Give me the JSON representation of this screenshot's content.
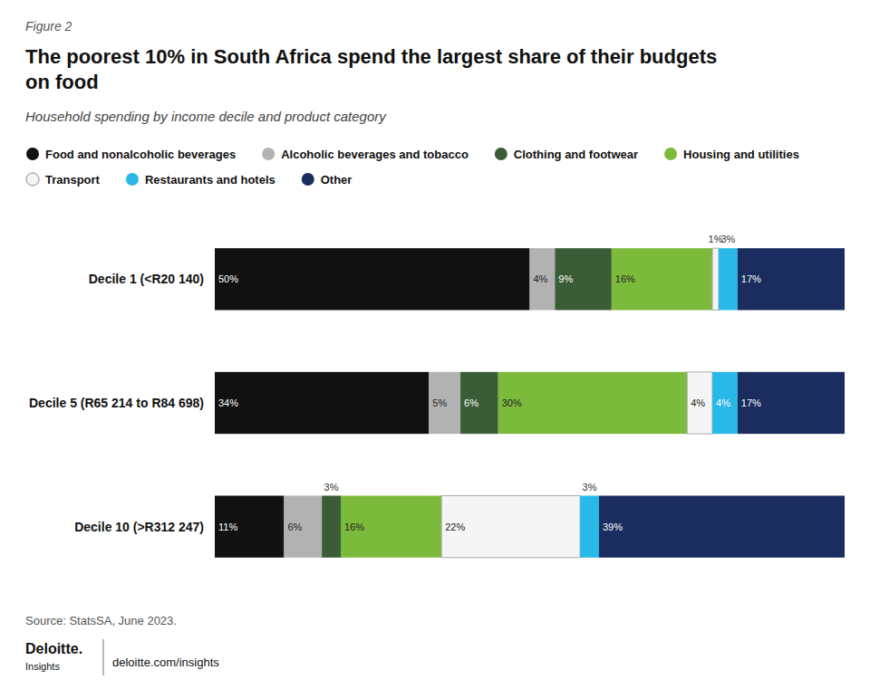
{
  "chart_data": {
    "type": "bar",
    "orientation": "horizontal",
    "stacked": true,
    "data_labels": true,
    "tick_labels": false,
    "legend": "top",
    "figure_label": "Figure 2",
    "title": "The poorest 10% in South Africa spend the largest share of their budgets\non food",
    "subtitle": "Household spending by income decile and product category",
    "source": "Source: StatsSA, June 2023.",
    "footer": [
      "Deloitte.",
      "Insights",
      "deloitte.com/insights"
    ],
    "categories": [
      "Decile 1 (<R20 140)",
      "Decile 5 (R65 214 to R84 698)",
      "Decile 10 (>R312 247)"
    ],
    "xlim": [
      0,
      100
    ],
    "series": [
      {
        "name": "Food and nonalcoholic beverages",
        "color": "#111111",
        "values": [
          50,
          34,
          11
        ],
        "value_labels": [
          "50%",
          "34%",
          "11%"
        ]
      },
      {
        "name": "Alcoholic beverages and tobacco",
        "color": "#b2b2b2",
        "values": [
          4,
          5,
          6
        ],
        "value_labels": [
          "4%",
          "5%",
          "6%"
        ]
      },
      {
        "name": "Clothing and footwear",
        "color": "#3a5c36",
        "values": [
          9,
          6,
          3
        ],
        "value_labels": [
          "9%",
          "6%",
          "3%"
        ]
      },
      {
        "name": "Housing and utilities",
        "color": "#7cba3c",
        "values": [
          16,
          30,
          16
        ],
        "value_labels": [
          "16%",
          "30%",
          "16%"
        ]
      },
      {
        "name": "Transport",
        "color": "#f5f5f5",
        "values": [
          1,
          4,
          22
        ],
        "value_labels": [
          "1%",
          "4%",
          "22%"
        ]
      },
      {
        "name": "Restaurants and hotels",
        "color": "#29b8e8",
        "values": [
          3,
          4,
          3
        ],
        "value_labels": [
          "3%",
          "4%",
          "3%"
        ]
      },
      {
        "name": "Other",
        "color": "#1b2d5e",
        "values": [
          17,
          17,
          39
        ],
        "value_labels": [
          "17%",
          "17%",
          "39%"
        ]
      }
    ]
  }
}
